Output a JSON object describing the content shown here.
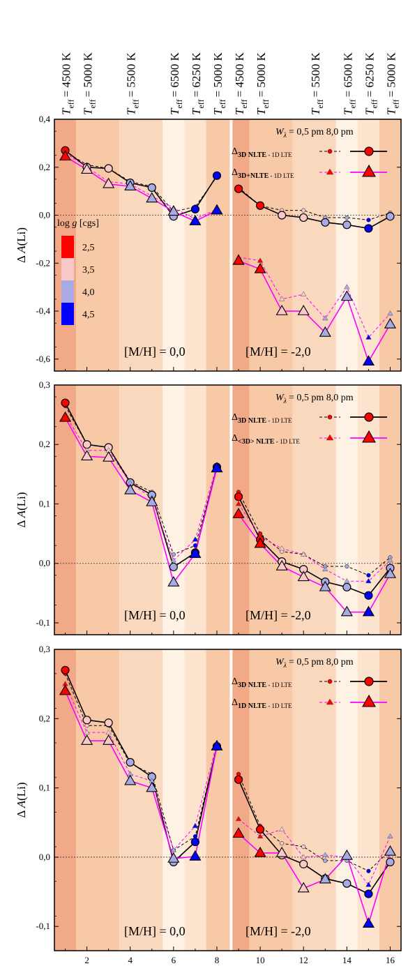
{
  "header": {
    "label_base": "T",
    "label_sub": "eff",
    "items": [
      {
        "x": 1,
        "value": "= 4500 K"
      },
      {
        "x": 2,
        "value": "= 5000 K"
      },
      {
        "x": 4,
        "value": "= 5500 K"
      },
      {
        "x": 6,
        "value": "= 6500 K"
      },
      {
        "x": 7,
        "value": "= 6250 K"
      },
      {
        "x": 8,
        "value": "= 5000 K"
      },
      {
        "x": 9,
        "value": "= 4500 K"
      },
      {
        "x": 10,
        "value": "= 5000 K"
      },
      {
        "x": 12.5,
        "value": "= 5500 K"
      },
      {
        "x": 14,
        "value": "= 6500 K"
      },
      {
        "x": 15,
        "value": "= 6250 K"
      },
      {
        "x": 16,
        "value": "= 5000 K"
      }
    ]
  },
  "logg_legend": {
    "title": "log g [cgs]",
    "entries": [
      {
        "label": "2,5",
        "color": "#ff0000"
      },
      {
        "label": "3,5",
        "color": "#f9c8c8"
      },
      {
        "label": "4,0",
        "color": "#a9a9e3"
      },
      {
        "label": "4,5",
        "color": "#0000ff"
      }
    ]
  },
  "background_bands": [
    {
      "from": 0.5,
      "to": 1.5,
      "color": "#f2a988"
    },
    {
      "from": 1.5,
      "to": 3.5,
      "color": "#f8c9a7"
    },
    {
      "from": 3.5,
      "to": 5.5,
      "color": "#fad8bd"
    },
    {
      "from": 5.5,
      "to": 6.5,
      "color": "#fef2e4"
    },
    {
      "from": 6.5,
      "to": 7.5,
      "color": "#fde4cf"
    },
    {
      "from": 7.5,
      "to": 8.6,
      "color": "#f8c9a7"
    },
    {
      "from": 8.6,
      "to": 8.72,
      "color": "#ffffff"
    },
    {
      "from": 8.72,
      "to": 9.5,
      "color": "#f2a988"
    },
    {
      "from": 9.5,
      "to": 11.5,
      "color": "#f8c9a7"
    },
    {
      "from": 11.5,
      "to": 13.5,
      "color": "#fad8bd"
    },
    {
      "from": 13.5,
      "to": 14.5,
      "color": "#fef2e4"
    },
    {
      "from": 14.5,
      "to": 15.5,
      "color": "#fde4cf"
    },
    {
      "from": 15.5,
      "to": 16.5,
      "color": "#f8c9a7"
    }
  ],
  "chart_data": [
    {
      "type": "line",
      "panel": "top",
      "xlim": [
        0.5,
        16.5
      ],
      "ylim": [
        -0.65,
        0.4
      ],
      "ylabel": "Δ A(Li)",
      "yticks": [
        0.4,
        0.2,
        0.0,
        -0.2,
        -0.4,
        -0.6
      ],
      "ytick_labels": [
        "0,4",
        "0,2",
        "0,0",
        "-0,2",
        "-0,4",
        "-0,6"
      ],
      "xticks": [],
      "wlambda_label": "W",
      "wlambda_sub": "λ",
      "wlambda_values": "=  0,5 pm 8,0 pm",
      "legend": [
        {
          "delta": "Δ",
          "label": "3D NLTE",
          "suffix": " - 1D LTE"
        },
        {
          "delta": "Δ",
          "label": "3D+NLTE",
          "suffix": " - 1D LTE"
        }
      ],
      "metallicity_labels": [
        "[M/H] = 0,0",
        "[M/H] = -2,0"
      ],
      "point_colors": [
        "#ff0000",
        "#f9c8c8",
        "#f9c8c8",
        "#a9a9e3",
        "#a9a9e3",
        "#a9a9e3",
        "#0000ff",
        "#0000ff",
        "#ff0000",
        "#ff0000",
        "#f9c8c8",
        "#f9c8c8",
        "#a9a9e3",
        "#a9a9e3",
        "#0000ff",
        "#a9a9e3"
      ],
      "series": [
        {
          "marker": "circle",
          "color": "#000000",
          "wl": "0,5 pm",
          "groups": [
            {
              "x": [
                1,
                2,
                3,
                4,
                5,
                6,
                7,
                8
              ],
              "y": [
                0.265,
                0.21,
                0.195,
                0.14,
                0.12,
                0.015,
                0.035,
                0.16
              ]
            },
            {
              "x": [
                9,
                10,
                11,
                12,
                13,
                14,
                15,
                16
              ],
              "y": [
                0.115,
                0.04,
                0.02,
                0.02,
                -0.01,
                -0.01,
                -0.02,
                0.01
              ]
            }
          ]
        },
        {
          "marker": "circle",
          "color": "#000000",
          "wl": "8,0 pm",
          "groups": [
            {
              "x": [
                1,
                2,
                3,
                4,
                5,
                6,
                7,
                8
              ],
              "y": [
                0.27,
                0.2,
                0.195,
                0.135,
                0.115,
                -0.005,
                0.025,
                0.165
              ]
            },
            {
              "x": [
                9,
                10,
                11,
                12,
                13,
                14,
                15,
                16
              ],
              "y": [
                0.11,
                0.04,
                0.0,
                -0.01,
                -0.03,
                -0.04,
                -0.055,
                -0.005
              ]
            }
          ]
        },
        {
          "marker": "triangle",
          "color": "#ff00ff",
          "wl": "0,5 pm",
          "groups": [
            {
              "x": [
                1,
                2,
                3,
                4,
                5,
                6,
                7,
                8
              ],
              "y": [
                0.26,
                0.2,
                0.14,
                0.13,
                0.08,
                0.03,
                -0.015,
                0.025
              ]
            },
            {
              "x": [
                9,
                10,
                11,
                12,
                13,
                14,
                15,
                16
              ],
              "y": [
                -0.175,
                -0.19,
                -0.35,
                -0.33,
                -0.43,
                -0.3,
                -0.51,
                -0.41
              ]
            }
          ]
        },
        {
          "marker": "triangle",
          "color": "#ff00ff",
          "wl": "8,0 pm",
          "groups": [
            {
              "x": [
                1,
                2,
                3,
                4,
                5,
                6,
                7,
                8
              ],
              "y": [
                0.245,
                0.19,
                0.13,
                0.12,
                0.07,
                0.015,
                -0.025,
                0.02
              ]
            },
            {
              "x": [
                9,
                10,
                11,
                12,
                13,
                14,
                15,
                16
              ],
              "y": [
                -0.19,
                -0.225,
                -0.4,
                -0.4,
                -0.49,
                -0.34,
                -0.61,
                -0.455
              ]
            }
          ]
        }
      ]
    },
    {
      "type": "line",
      "panel": "middle",
      "xlim": [
        0.5,
        16.5
      ],
      "ylim": [
        -0.12,
        0.3
      ],
      "ylabel": "Δ A(Li)",
      "yticks": [
        0.3,
        0.2,
        0.1,
        0.0,
        -0.1
      ],
      "ytick_labels": [
        "0,3",
        "0,2",
        "0,1",
        "0,0",
        "-0,1"
      ],
      "xticks": [],
      "wlambda_label": "W",
      "wlambda_sub": "λ",
      "wlambda_values": "=  0,5 pm 8,0 pm",
      "legend": [
        {
          "delta": "Δ",
          "label": "3D NLTE",
          "suffix": " - 1D LTE"
        },
        {
          "delta": "Δ",
          "label": "<3D> NLTE",
          "suffix": " - 1D LTE"
        }
      ],
      "metallicity_labels": [
        "[M/H] = 0,0",
        "[M/H] = -2,0"
      ],
      "point_colors": [
        "#ff0000",
        "#f9c8c8",
        "#f9c8c8",
        "#a9a9e3",
        "#a9a9e3",
        "#a9a9e3",
        "#0000ff",
        "#0000ff",
        "#ff0000",
        "#ff0000",
        "#f9c8c8",
        "#f9c8c8",
        "#a9a9e3",
        "#a9a9e3",
        "#0000ff",
        "#a9a9e3"
      ],
      "series": [
        {
          "marker": "circle",
          "color": "#000000",
          "wl": "0,5 pm",
          "groups": [
            {
              "x": [
                1,
                2,
                3,
                4,
                5,
                6,
                7,
                8
              ],
              "y": [
                0.265,
                0.2,
                0.195,
                0.138,
                0.12,
                0.015,
                0.03,
                0.16
              ]
            },
            {
              "x": [
                9,
                10,
                11,
                12,
                13,
                14,
                15,
                16
              ],
              "y": [
                0.12,
                0.05,
                0.02,
                0.015,
                -0.005,
                -0.005,
                -0.02,
                0.01
              ]
            }
          ]
        },
        {
          "marker": "circle",
          "color": "#000000",
          "wl": "8,0 pm",
          "groups": [
            {
              "x": [
                1,
                2,
                3,
                4,
                5,
                6,
                7,
                8
              ],
              "y": [
                0.27,
                0.2,
                0.195,
                0.136,
                0.115,
                -0.006,
                0.018,
                0.162
              ]
            },
            {
              "x": [
                9,
                10,
                11,
                12,
                13,
                14,
                15,
                16
              ],
              "y": [
                0.112,
                0.04,
                0.003,
                -0.01,
                -0.031,
                -0.04,
                -0.054,
                -0.008
              ]
            }
          ]
        },
        {
          "marker": "triangle",
          "color": "#ff00ff",
          "wl": "0,5 pm",
          "groups": [
            {
              "x": [
                1,
                2,
                3,
                4,
                5,
                6,
                7,
                8
              ],
              "y": [
                0.25,
                0.19,
                0.19,
                0.135,
                0.11,
                0.005,
                0.04,
                0.165
              ]
            },
            {
              "x": [
                9,
                10,
                11,
                12,
                13,
                14,
                15,
                16
              ],
              "y": [
                0.1,
                0.045,
                0.025,
                0.015,
                -0.01,
                -0.03,
                -0.03,
                0.005
              ]
            }
          ]
        },
        {
          "marker": "triangle",
          "color": "#ff00ff",
          "wl": "8,0 pm",
          "groups": [
            {
              "x": [
                1,
                2,
                3,
                4,
                5,
                6,
                7,
                8
              ],
              "y": [
                0.245,
                0.18,
                0.178,
                0.123,
                0.103,
                -0.032,
                0.016,
                0.16
              ]
            },
            {
              "x": [
                9,
                10,
                11,
                12,
                13,
                14,
                15,
                16
              ],
              "y": [
                0.083,
                0.033,
                -0.005,
                -0.023,
                -0.04,
                -0.082,
                -0.082,
                -0.018
              ]
            }
          ]
        }
      ]
    },
    {
      "type": "line",
      "panel": "bottom",
      "xlim": [
        0.5,
        16.5
      ],
      "ylim": [
        -0.135,
        0.3
      ],
      "ylabel": "Δ A(Li)",
      "yticks": [
        0.3,
        0.2,
        0.1,
        0.0,
        -0.1
      ],
      "ytick_labels": [
        "0,3",
        "0,2",
        "0,1",
        "0,0",
        "-0,1"
      ],
      "xticks": [
        2,
        4,
        6,
        8,
        10,
        12,
        14,
        16
      ],
      "wlambda_label": "W",
      "wlambda_sub": "λ",
      "wlambda_values": "=  0,5 pm 8,0 pm",
      "legend": [
        {
          "delta": "Δ",
          "label": "3D NLTE",
          "suffix": " - 1D LTE"
        },
        {
          "delta": "Δ",
          "label": "1D NLTE",
          "suffix": " - 1D LTE"
        }
      ],
      "metallicity_labels": [
        "[M/H] = 0,0",
        "[M/H] = -2,0"
      ],
      "point_colors": [
        "#ff0000",
        "#f9c8c8",
        "#f9c8c8",
        "#a9a9e3",
        "#a9a9e3",
        "#a9a9e3",
        "#0000ff",
        "#0000ff",
        "#ff0000",
        "#ff0000",
        "#f9c8c8",
        "#f9c8c8",
        "#a9a9e3",
        "#a9a9e3",
        "#0000ff",
        "#a9a9e3"
      ],
      "series": [
        {
          "marker": "circle",
          "color": "#000000",
          "wl": "0,5 pm",
          "groups": [
            {
              "x": [
                1,
                2,
                3,
                4,
                5,
                6,
                7,
                8
              ],
              "y": [
                0.265,
                0.19,
                0.19,
                0.135,
                0.12,
                0.01,
                0.03,
                0.16
              ]
            },
            {
              "x": [
                9,
                10,
                11,
                12,
                13,
                14,
                15,
                16
              ],
              "y": [
                0.12,
                0.045,
                0.02,
                0.015,
                -0.005,
                -0.005,
                -0.02,
                0.01
              ]
            }
          ]
        },
        {
          "marker": "circle",
          "color": "#000000",
          "wl": "8,0 pm",
          "groups": [
            {
              "x": [
                1,
                2,
                3,
                4,
                5,
                6,
                7,
                8
              ],
              "y": [
                0.27,
                0.198,
                0.194,
                0.137,
                0.116,
                -0.007,
                0.022,
                0.16
              ]
            },
            {
              "x": [
                9,
                10,
                11,
                12,
                13,
                14,
                15,
                16
              ],
              "y": [
                0.112,
                0.04,
                0.003,
                -0.01,
                -0.031,
                -0.038,
                -0.053,
                -0.007
              ]
            }
          ]
        },
        {
          "marker": "triangle",
          "color": "#ff00ff",
          "wl": "0,5 pm",
          "groups": [
            {
              "x": [
                1,
                2,
                3,
                4,
                5,
                6,
                7,
                8
              ],
              "y": [
                0.25,
                0.18,
                0.18,
                0.12,
                0.11,
                0.01,
                0.045,
                0.165
              ]
            },
            {
              "x": [
                9,
                10,
                11,
                12,
                13,
                14,
                15,
                16
              ],
              "y": [
                0.055,
                0.03,
                0.04,
                0.0,
                0.003,
                0.0,
                -0.04,
                0.03
              ]
            }
          ]
        },
        {
          "marker": "triangle",
          "color": "#ff00ff",
          "wl": "8,0 pm",
          "groups": [
            {
              "x": [
                1,
                2,
                3,
                4,
                5,
                6,
                7,
                8
              ],
              "y": [
                0.24,
                0.168,
                0.168,
                0.11,
                0.1,
                -0.002,
                0.001,
                0.16
              ]
            },
            {
              "x": [
                9,
                10,
                11,
                12,
                13,
                14,
                15,
                16
              ],
              "y": [
                0.034,
                0.006,
                0.006,
                -0.045,
                -0.032,
                0.002,
                -0.096,
                0.008
              ]
            }
          ]
        }
      ]
    }
  ]
}
